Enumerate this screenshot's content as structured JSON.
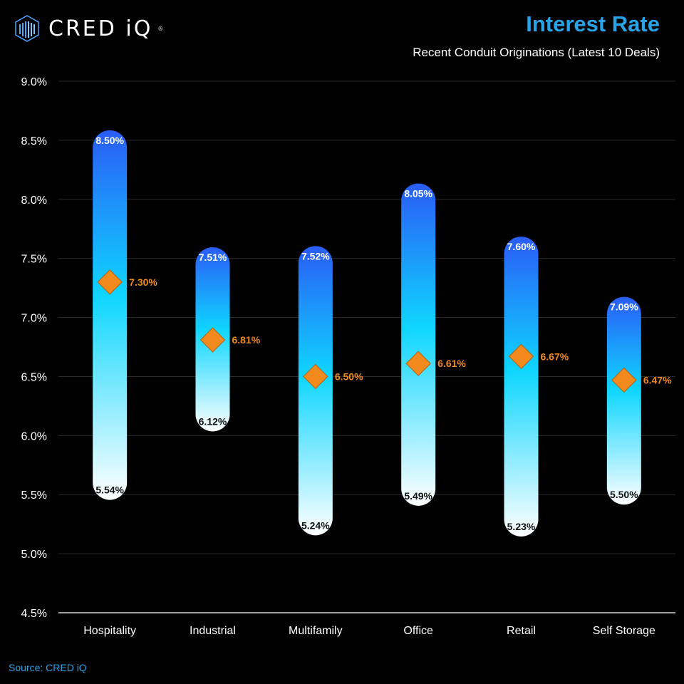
{
  "header": {
    "logo_text": "CRED iQ",
    "logo_mark": "®",
    "title": "Interest Rate",
    "subtitle": "Recent Conduit Originations (Latest 10 Deals)"
  },
  "footer": {
    "source": "Source: CRED iQ"
  },
  "colors": {
    "title": "#29a3e8",
    "bar_top": "#2a5cf5",
    "bar_mid": "#0fd6ff",
    "bar_bottom": "#ffffff",
    "marker": "#f28a1e",
    "avg_label": "#f28a1e",
    "grid": "#2a2a2a",
    "axis": "#ffffff"
  },
  "chart_data": {
    "type": "range-bar",
    "title": "Interest Rate",
    "subtitle": "Recent Conduit Originations (Latest 10 Deals)",
    "xlabel": "",
    "ylabel": "",
    "ylim": [
      4.5,
      9.0
    ],
    "yticks": [
      4.5,
      5.0,
      5.5,
      6.0,
      6.5,
      7.0,
      7.5,
      8.0,
      8.5,
      9.0
    ],
    "ytick_labels": [
      "4.5%",
      "5.0%",
      "5.5%",
      "6.0%",
      "6.5%",
      "7.0%",
      "7.5%",
      "8.0%",
      "8.5%",
      "9.0%"
    ],
    "grid": true,
    "categories": [
      "Hospitality",
      "Industrial",
      "Multifamily",
      "Office",
      "Retail",
      "Self Storage"
    ],
    "series": [
      {
        "name": "High",
        "values": [
          8.5,
          7.51,
          7.52,
          8.05,
          7.6,
          7.09
        ],
        "labels": [
          "8.50%",
          "7.51%",
          "7.52%",
          "8.05%",
          "7.60%",
          "7.09%"
        ]
      },
      {
        "name": "Low",
        "values": [
          5.54,
          6.12,
          5.24,
          5.49,
          5.23,
          5.5
        ],
        "labels": [
          "5.54%",
          "6.12%",
          "5.24%",
          "5.49%",
          "5.23%",
          "5.50%"
        ]
      },
      {
        "name": "Average",
        "values": [
          7.3,
          6.81,
          6.5,
          6.61,
          6.67,
          6.47
        ],
        "labels": [
          "7.30%",
          "6.81%",
          "6.50%",
          "6.61%",
          "6.67%",
          "6.47%"
        ]
      }
    ]
  }
}
